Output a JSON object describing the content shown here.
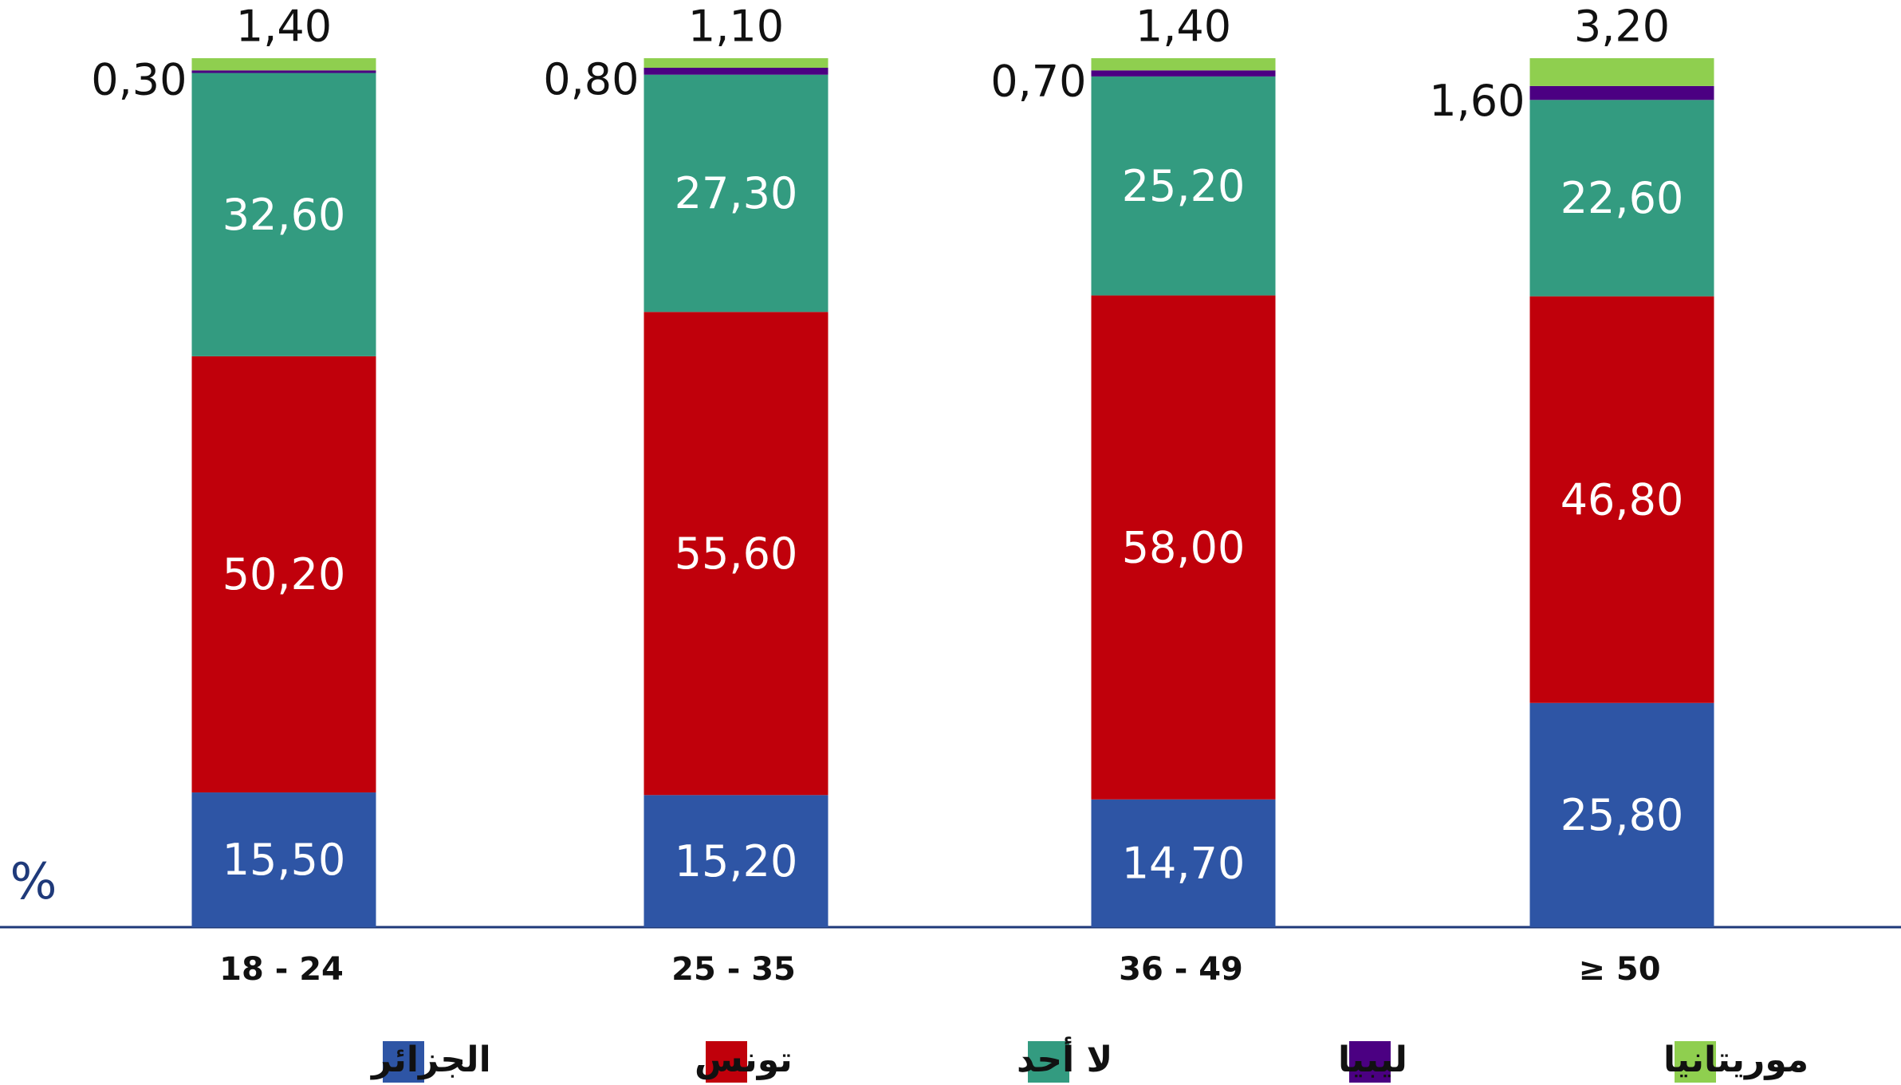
{
  "chart_data": {
    "type": "stacked_bar",
    "y_unit": "%",
    "categories": [
      "18 - 24",
      "25 - 35",
      "36 - 49",
      "≥ 50"
    ],
    "ylim": [
      0,
      100
    ],
    "series": [
      {
        "name": "الجزائر",
        "color": "#2e55a5",
        "values": [
          15.5,
          15.2,
          14.7,
          25.8
        ],
        "value_labels": [
          "15,50",
          "15,20",
          "14,70",
          "25,80"
        ]
      },
      {
        "name": "تونس",
        "color": "#c0000b",
        "values": [
          50.2,
          55.6,
          58.0,
          46.8
        ],
        "value_labels": [
          "50,20",
          "55,60",
          "58,00",
          "46,80"
        ]
      },
      {
        "name": "لا أحد",
        "color": "#339b80",
        "values": [
          32.6,
          27.3,
          25.2,
          22.6
        ],
        "value_labels": [
          "32,60",
          "27,30",
          "25,20",
          "22,60"
        ]
      },
      {
        "name": "ليبيا",
        "color": "#4b0082",
        "values": [
          0.3,
          0.8,
          0.7,
          1.6
        ],
        "value_labels": [
          "0,30",
          "0,80",
          "0,70",
          "1,60"
        ]
      },
      {
        "name": "موريتانيا",
        "color": "#8fcf4f",
        "values": [
          1.4,
          1.1,
          1.4,
          3.2
        ],
        "value_labels": [
          "1,40",
          "1,10",
          "1,40",
          "3,20"
        ]
      }
    ]
  }
}
